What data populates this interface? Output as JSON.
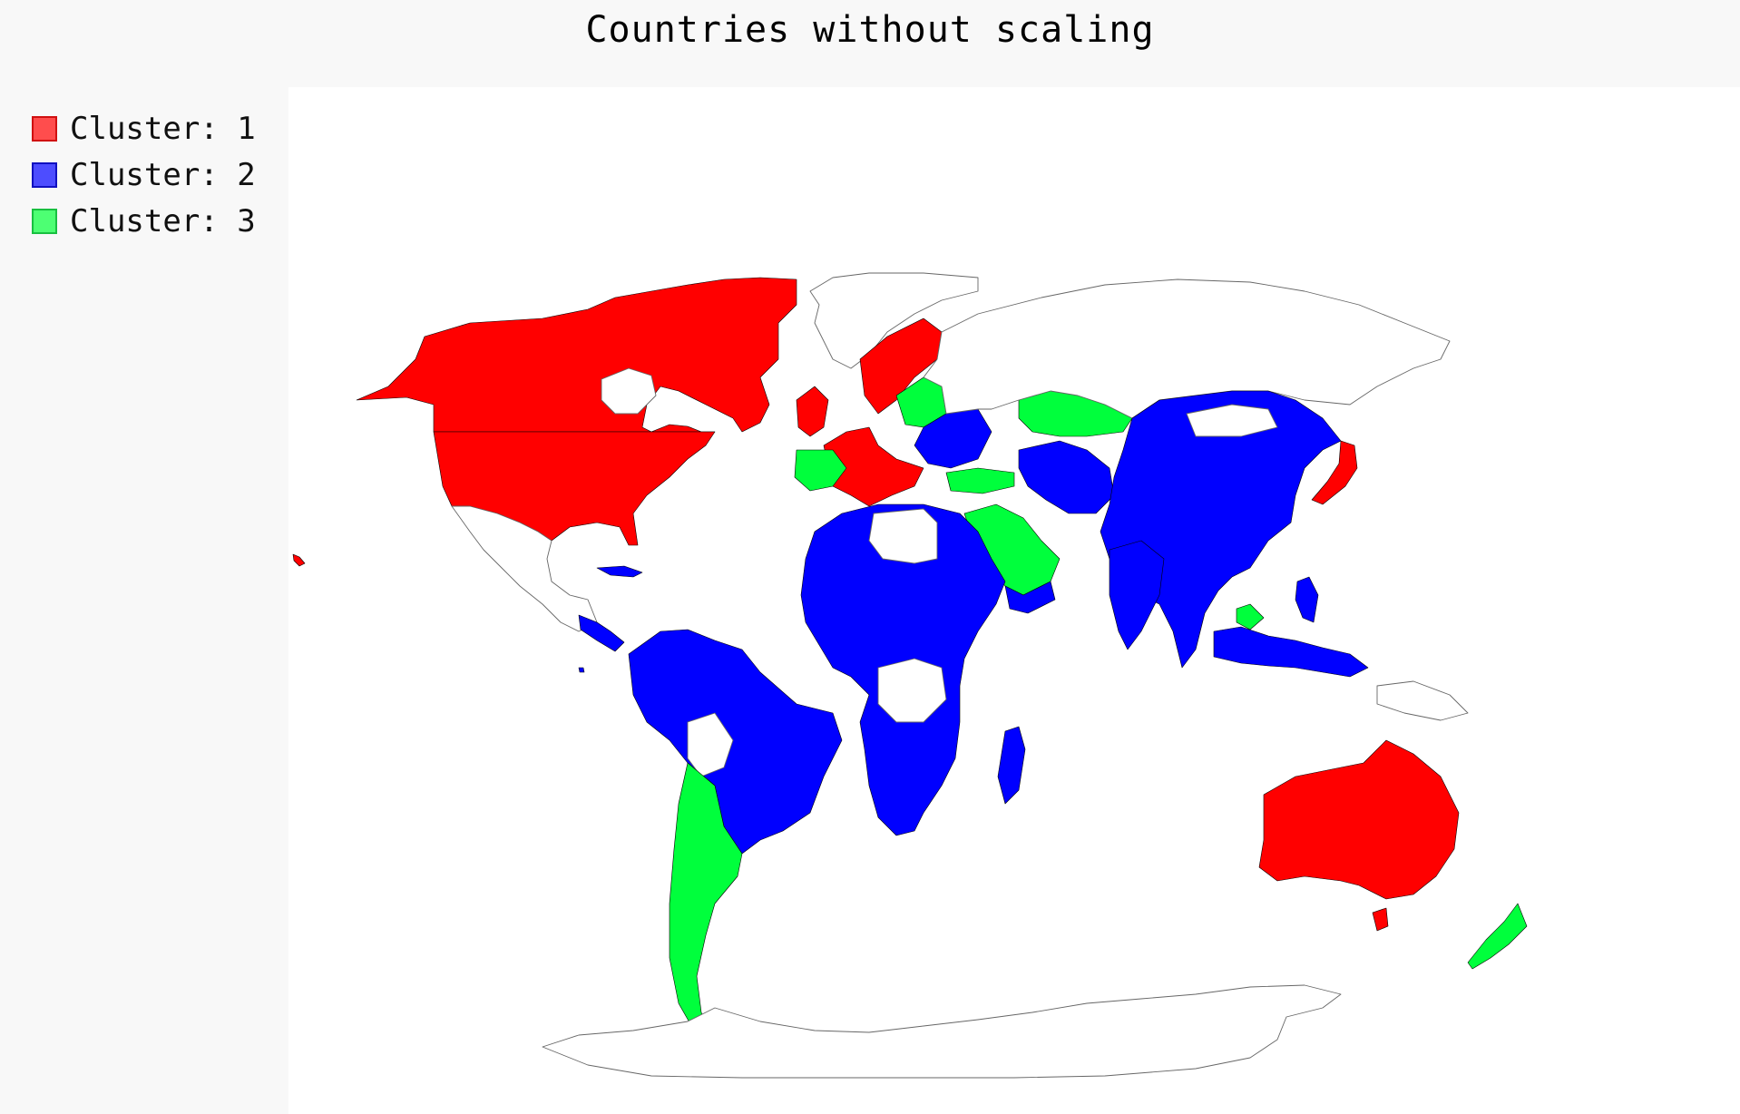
{
  "chart_data": {
    "type": "map",
    "title": "Countries without scaling",
    "legend_position": "left",
    "series": [
      {
        "name": "Cluster: 1",
        "color": "#ff0000",
        "swatch_fill": "#ff4d4d",
        "swatch_stroke": "#d01010"
      },
      {
        "name": "Cluster: 2",
        "color": "#0000ff",
        "swatch_fill": "#4d4dff",
        "swatch_stroke": "#1010c0"
      },
      {
        "name": "Cluster: 3",
        "color": "#00ff3c",
        "swatch_fill": "#4dff73",
        "swatch_stroke": "#18c040"
      }
    ]
  }
}
